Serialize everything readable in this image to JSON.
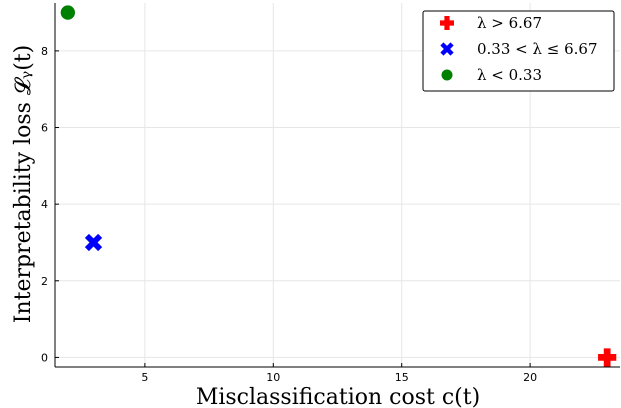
{
  "chart_data": {
    "type": "scatter",
    "title": "",
    "xlabel": "Misclassification cost c(t)",
    "ylabel": "Interpretability loss 𝓛ᵧ(t)",
    "xlim": [
      1.5,
      23.5
    ],
    "ylim": [
      -0.25,
      9.25
    ],
    "xticks": [
      5,
      10,
      15,
      20
    ],
    "yticks": [
      0,
      2,
      4,
      6,
      8
    ],
    "grid": true,
    "legend_position": "top-right",
    "series": [
      {
        "name": "λ > 6.67",
        "color": "#ff0000",
        "marker": "cross",
        "x": [
          23
        ],
        "y": [
          0
        ]
      },
      {
        "name": "0.33 < λ ≤ 6.67",
        "color": "#0000ff",
        "marker": "x",
        "x": [
          3
        ],
        "y": [
          3
        ]
      },
      {
        "name": "λ < 0.33",
        "color": "#008000",
        "marker": "circle",
        "x": [
          2
        ],
        "y": [
          9
        ]
      }
    ]
  }
}
